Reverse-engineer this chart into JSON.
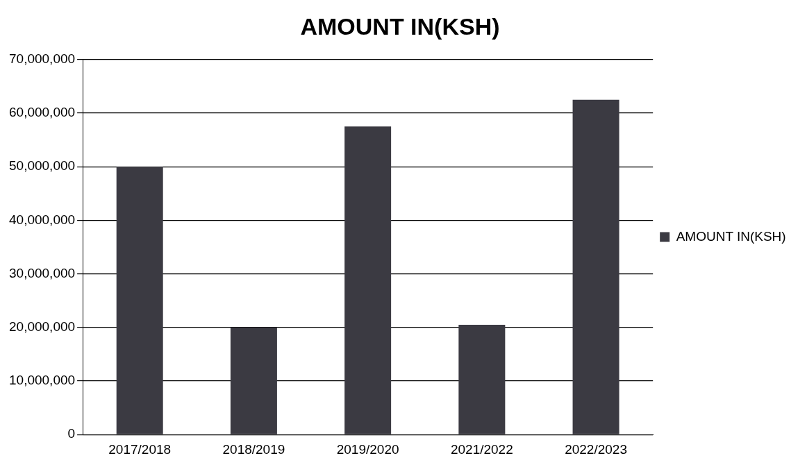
{
  "chart_data": {
    "type": "bar",
    "title": "AMOUNT IN(KSH)",
    "categories": [
      "2017/2018",
      "2018/2019",
      "2019/2020",
      "2021/2022",
      "2022/2023"
    ],
    "series": [
      {
        "name": "AMOUNT IN(KSH)",
        "color": "#3b3a42",
        "values": [
          50000000,
          20000000,
          57500000,
          20500000,
          62500000
        ]
      }
    ],
    "ylim": [
      0,
      70000000
    ],
    "yticks": [
      {
        "value": 0,
        "label": "0"
      },
      {
        "value": 10000000,
        "label": "10,000,000"
      },
      {
        "value": 20000000,
        "label": "20,000,000"
      },
      {
        "value": 30000000,
        "label": "30,000,000"
      },
      {
        "value": 40000000,
        "label": "40,000,000"
      },
      {
        "value": 50000000,
        "label": "50,000,000"
      },
      {
        "value": 60000000,
        "label": "60,000,000"
      },
      {
        "value": 70000000,
        "label": "70,000,000"
      }
    ],
    "grid": "y",
    "legend": "right"
  }
}
